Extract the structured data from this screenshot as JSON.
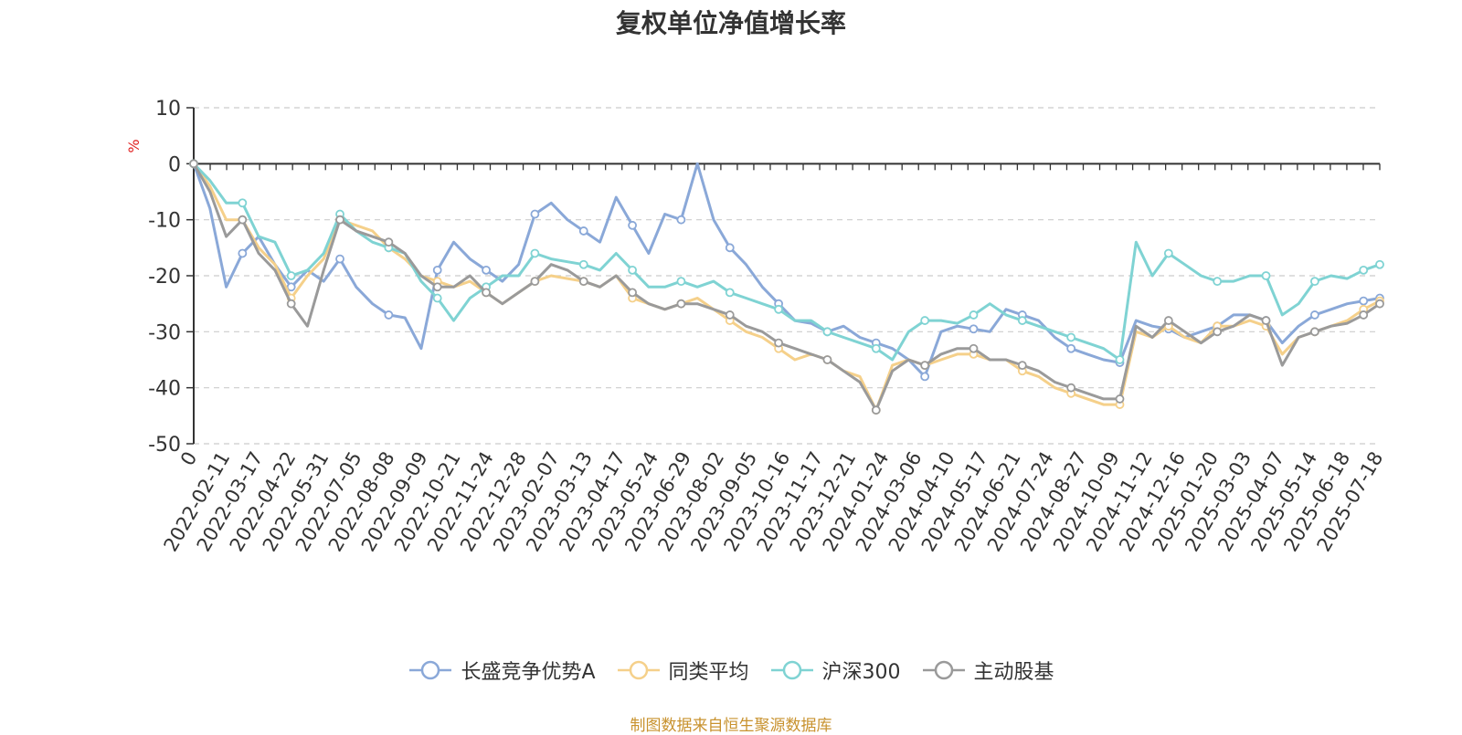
{
  "chart_data": {
    "type": "line",
    "title": "复权单位净值增长率",
    "ylabel": "%",
    "ylim": [
      -50,
      10
    ],
    "yticks": [
      10,
      0,
      -10,
      -20,
      -30,
      -40,
      -50
    ],
    "x_tick_labels": [
      "0",
      "2022-02-11",
      "2022-03-17",
      "2022-04-22",
      "2022-05-31",
      "2022-07-05",
      "2022-08-08",
      "2022-09-09",
      "2022-10-21",
      "2022-11-24",
      "2022-12-28",
      "2023-02-07",
      "2023-03-13",
      "2023-04-17",
      "2023-05-24",
      "2023-06-29",
      "2023-08-02",
      "2023-09-05",
      "2023-10-16",
      "2023-11-17",
      "2023-12-21",
      "2024-01-24",
      "2024-03-06",
      "2024-04-10",
      "2024-05-17",
      "2024-06-21",
      "2024-07-24",
      "2024-08-27",
      "2024-10-09",
      "2024-11-12",
      "2024-12-16",
      "2025-01-20",
      "2025-03-03",
      "2025-04-07",
      "2025-05-14",
      "2025-06-18",
      "2025-07-18"
    ],
    "grid": "horizontal dashed",
    "legend_position": "bottom",
    "series": [
      {
        "name": "长盛竞争优势A",
        "color": "#8aa8d8",
        "values": [
          0,
          -8,
          -22,
          -16,
          -13,
          -18,
          -22,
          -19,
          -21,
          -17,
          -22,
          -25,
          -27,
          -27.5,
          -33,
          -19,
          -14,
          -17,
          -19,
          -21,
          -18,
          -9,
          -7,
          -10,
          -12,
          -14,
          -6,
          -11,
          -16,
          -9,
          -10,
          0,
          -10,
          -15,
          -18,
          -22,
          -25,
          -28,
          -28.5,
          -30,
          -29,
          -31,
          -32,
          -33,
          -35,
          -38,
          -30,
          -29,
          -29.5,
          -30,
          -26,
          -27,
          -28,
          -31,
          -33,
          -34,
          -35,
          -35.5,
          -28,
          -29,
          -29.5,
          -31,
          -30,
          -29,
          -27,
          -27,
          -28,
          -32,
          -29,
          -27,
          -26,
          -25,
          -24.5,
          -24
        ]
      },
      {
        "name": "同类平均",
        "color": "#f5d08a",
        "values": [
          0,
          -4,
          -10,
          -10,
          -15,
          -18,
          -24,
          -20,
          -17,
          -10,
          -11,
          -12,
          -15,
          -17,
          -20,
          -21,
          -22,
          -21,
          -23,
          -25,
          -23,
          -21,
          -20,
          -20.5,
          -21,
          -22,
          -20,
          -24,
          -25,
          -26,
          -25,
          -24,
          -26,
          -28,
          -30,
          -31,
          -33,
          -35,
          -34,
          -35,
          -37,
          -38,
          -44,
          -36,
          -35,
          -36,
          -35,
          -34,
          -34,
          -35,
          -35,
          -37,
          -38,
          -40,
          -41,
          -42,
          -43,
          -43,
          -30,
          -31,
          -29,
          -31,
          -32,
          -29,
          -29,
          -28,
          -29,
          -34,
          -31,
          -30,
          -29,
          -28,
          -26,
          -24.5
        ]
      },
      {
        "name": "沪深300",
        "color": "#7fd3d3",
        "values": [
          0,
          -3,
          -7,
          -7,
          -13,
          -14,
          -20,
          -19,
          -16,
          -9,
          -12,
          -14,
          -15,
          -16,
          -21,
          -24,
          -28,
          -24,
          -22,
          -20,
          -20,
          -16,
          -17,
          -17.5,
          -18,
          -19,
          -16,
          -19,
          -22,
          -22,
          -21,
          -22,
          -21,
          -23,
          -24,
          -25,
          -26,
          -28,
          -28,
          -30,
          -31,
          -32,
          -33,
          -35,
          -30,
          -28,
          -28,
          -28.5,
          -27,
          -25,
          -27,
          -28,
          -29,
          -30,
          -31,
          -32,
          -33,
          -35,
          -14,
          -20,
          -16,
          -18,
          -20,
          -21,
          -21,
          -20,
          -20,
          -27,
          -25,
          -21,
          -20,
          -20.5,
          -19,
          -18
        ]
      },
      {
        "name": "主动股基",
        "color": "#9a9a9a",
        "values": [
          0,
          -5,
          -13,
          -10,
          -16,
          -19,
          -25,
          -29,
          -19,
          -10,
          -12,
          -13,
          -14,
          -16,
          -20,
          -22,
          -22,
          -20,
          -23,
          -25,
          -23,
          -21,
          -18,
          -19,
          -21,
          -22,
          -20,
          -23,
          -25,
          -26,
          -25,
          -25,
          -26,
          -27,
          -29,
          -30,
          -32,
          -33,
          -34,
          -35,
          -37,
          -39,
          -44,
          -37,
          -35,
          -36,
          -34,
          -33,
          -33,
          -35,
          -35,
          -36,
          -37,
          -39,
          -40,
          -41,
          -42,
          -42,
          -29,
          -31,
          -28,
          -30,
          -32,
          -30,
          -29,
          -27,
          -28,
          -36,
          -31,
          -30,
          -29,
          -28.5,
          -27,
          -25
        ]
      }
    ]
  },
  "source_note": "制图数据来自恒生聚源数据库"
}
